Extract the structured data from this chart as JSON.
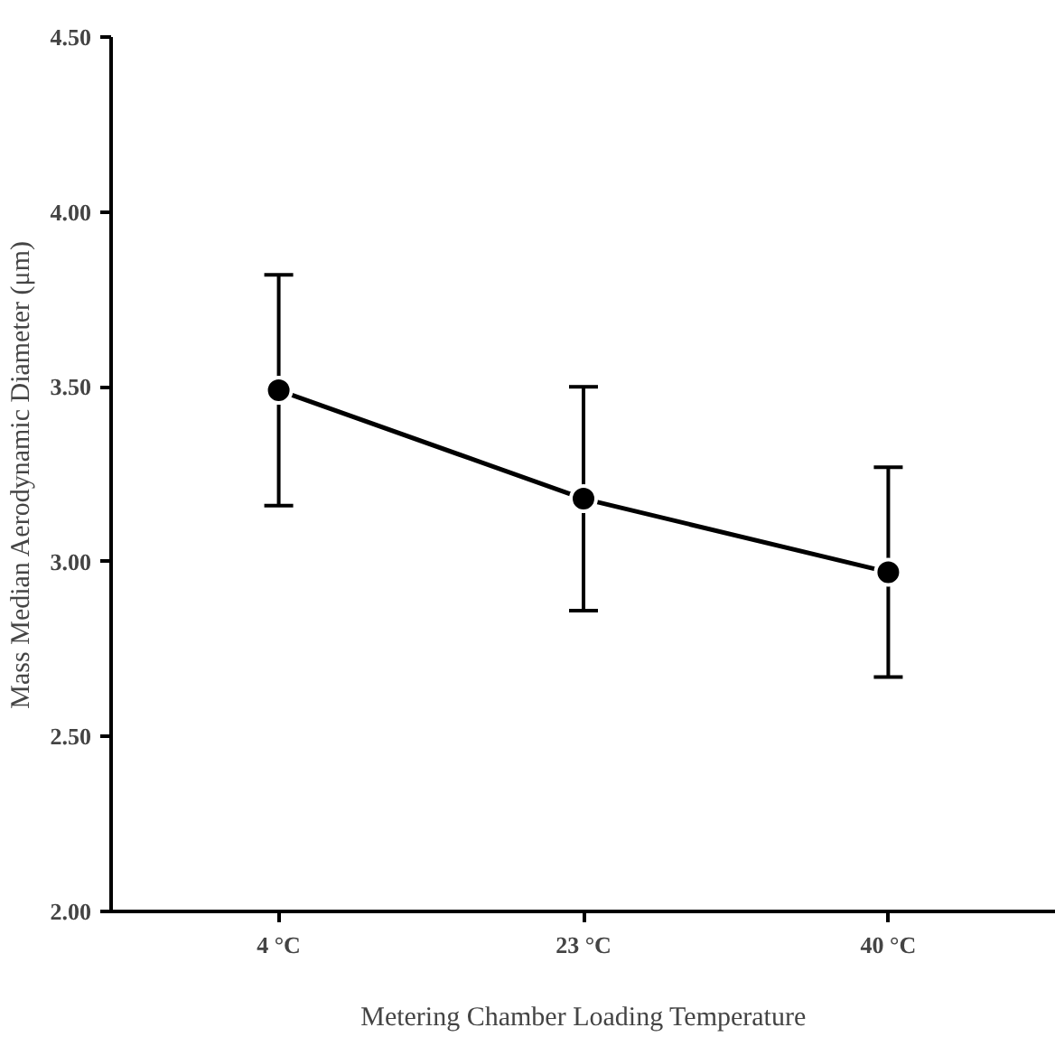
{
  "chart_data": {
    "type": "line",
    "xlabel": "Metering Chamber Loading Temperature",
    "ylabel": "Mass Median Aerodynamic Diameter (μm)",
    "categories": [
      "4 °C",
      "23 °C",
      "40 °C"
    ],
    "series": [
      {
        "color": "#000000",
        "values": [
          3.49,
          3.18,
          2.97
        ],
        "errors": [
          0.33,
          0.32,
          0.3
        ]
      }
    ],
    "ylim": [
      2.0,
      4.5
    ],
    "yticks": [
      {
        "value": 2.0,
        "label": "2.00"
      },
      {
        "value": 2.5,
        "label": "2.50"
      },
      {
        "value": 3.0,
        "label": "3.00"
      },
      {
        "value": 3.5,
        "label": "3.50"
      },
      {
        "value": 4.0,
        "label": "4.00"
      },
      {
        "value": 4.5,
        "label": "4.50"
      }
    ],
    "marker": "circle",
    "line_style": "solid",
    "grid": false
  }
}
